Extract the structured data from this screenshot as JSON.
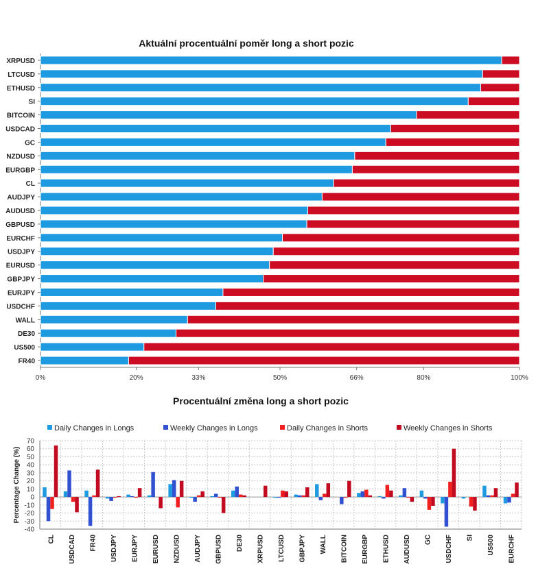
{
  "chart_data": [
    {
      "type": "bar",
      "orientation": "horizontal",
      "stacked": true,
      "title": "Aktuální procentuální poměr long a short pozic",
      "categories": [
        "XRPUSD",
        "LTCUSD",
        "ETHUSD",
        "SI",
        "BITCOIN",
        "USDCAD",
        "GC",
        "NZDUSD",
        "EURGBP",
        "CL",
        "AUDJPY",
        "AUDUSD",
        "GBPUSD",
        "EURCHF",
        "USDJPY",
        "EURUSD",
        "GBPJPY",
        "EURJPY",
        "USDCHF",
        "WALL",
        "DE30",
        "US500",
        "FR40"
      ],
      "series": [
        {
          "color": "#1e9be0",
          "values": [
            96.3,
            92.3,
            91.9,
            89.3,
            78.5,
            73.1,
            72.1,
            65.6,
            65.1,
            61.2,
            58.8,
            55.8,
            55.6,
            50.5,
            48.6,
            47.8,
            46.5,
            38.1,
            36.6,
            30.7,
            28.3,
            21.6,
            18.4
          ]
        },
        {
          "color": "#cc0c22",
          "values": [
            3.7,
            7.7,
            8.1,
            10.7,
            21.5,
            26.9,
            27.9,
            34.4,
            34.9,
            38.8,
            41.2,
            44.2,
            44.4,
            49.5,
            51.4,
            52.2,
            53.5,
            61.9,
            63.4,
            69.3,
            71.7,
            78.4,
            81.6
          ]
        }
      ],
      "x_ticks": [
        "0%",
        "20%",
        "33%",
        "50%",
        "66%",
        "80%",
        "100%"
      ],
      "x_tick_values": [
        0,
        20,
        33,
        50,
        66,
        80,
        100
      ],
      "xlim": [
        0,
        100
      ]
    },
    {
      "type": "bar",
      "title": "Procentuální změna long a short pozic",
      "ylabel": "Percentage Change (%)",
      "categories": [
        "CL",
        "USDCAD",
        "FR40",
        "USDJPY",
        "EURJPY",
        "EURUSD",
        "NZDUSD",
        "AUDJPY",
        "GBPUSD",
        "DE30",
        "XRPUSD",
        "LTCUSD",
        "GBPJPY",
        "WALL",
        "BITCOIN",
        "EURGBP",
        "ETHUSD",
        "AUDUSD",
        "GC",
        "USDCHF",
        "SI",
        "US500",
        "EURCHF"
      ],
      "series": [
        {
          "name": "Daily Changes in Longs",
          "color": "#1e9be0",
          "values": [
            12,
            7,
            8,
            -2,
            3,
            2,
            16,
            -1,
            1,
            8,
            0,
            -1,
            3,
            16,
            0,
            5,
            1,
            2,
            8,
            -8,
            -2,
            14,
            -8
          ]
        },
        {
          "name": "Weekly Changes in Longs",
          "color": "#3151d0",
          "values": [
            -30,
            33,
            -36,
            -5,
            1,
            31,
            21,
            -6,
            4,
            13,
            0,
            -1,
            2,
            -4,
            -9,
            7,
            -2,
            11,
            -2,
            -37,
            0,
            2,
            -7
          ]
        },
        {
          "name": "Daily Changes in Shorts",
          "color": "#f02020",
          "values": [
            -15,
            -6,
            2,
            -1,
            -1,
            0,
            -13,
            2,
            -1,
            3,
            0,
            8,
            2,
            4,
            -1,
            9,
            15,
            -1,
            -16,
            19,
            -12,
            2,
            4
          ]
        },
        {
          "name": "Weekly Changes in Shorts",
          "color": "#c20a20",
          "values": [
            64,
            -19,
            34,
            1,
            11,
            -14,
            20,
            7,
            -20,
            2,
            14,
            7,
            12,
            17,
            20,
            2,
            8,
            -6,
            -11,
            60,
            -17,
            11,
            18
          ]
        }
      ],
      "y_ticks": [
        "70",
        "60",
        "50",
        "40",
        "30",
        "20",
        "10",
        "0",
        "-10",
        "-20",
        "-30",
        "-40"
      ],
      "ylim": [
        -40,
        70
      ],
      "grid": true,
      "legend_position": "top"
    }
  ]
}
